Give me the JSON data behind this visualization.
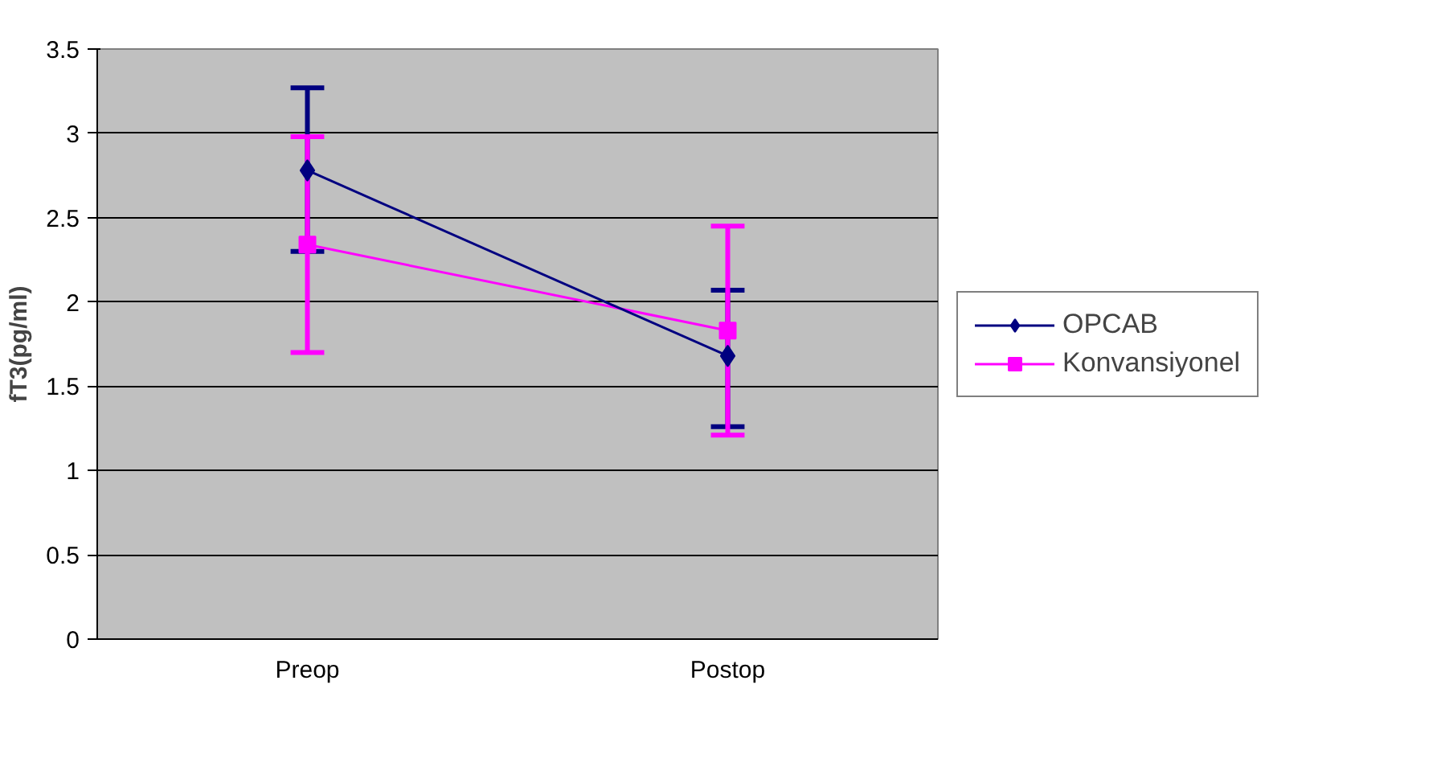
{
  "chart_data": {
    "type": "line",
    "ylabel": "fT3(pg/ml)",
    "categories": [
      "Preop",
      "Postop"
    ],
    "series": [
      {
        "name": "OPCAB",
        "color": "#000080",
        "values": [
          2.78,
          1.68
        ],
        "errors": [
          [
            2.3,
            3.27
          ],
          [
            1.26,
            2.07
          ]
        ],
        "marker": "diamond"
      },
      {
        "name": "Konvansiyonel",
        "color": "#ff00ff",
        "values": [
          2.34,
          1.83
        ],
        "errors": [
          [
            1.7,
            2.98
          ],
          [
            1.21,
            2.45
          ]
        ],
        "marker": "square"
      }
    ],
    "ylim": [
      0,
      3.5
    ],
    "yticks": [
      0,
      0.5,
      1,
      1.5,
      2,
      2.5,
      3,
      3.5
    ],
    "grid": "y",
    "legend": "right"
  }
}
